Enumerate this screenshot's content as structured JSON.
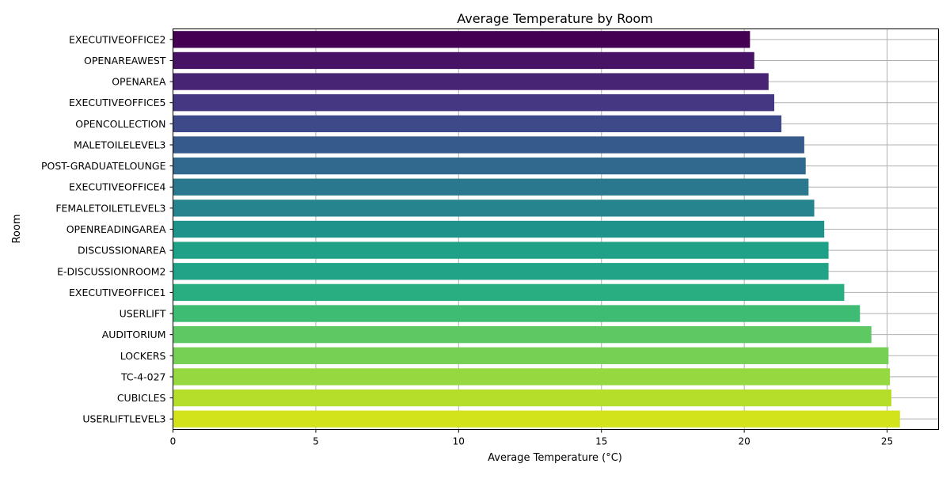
{
  "chart_data": {
    "type": "bar",
    "orientation": "horizontal",
    "title": "Average Temperature by Room",
    "xlabel": "Average Temperature (°C)",
    "ylabel": "Room",
    "xlim": [
      0,
      26.8
    ],
    "xticks": [
      0,
      5,
      10,
      15,
      20,
      25
    ],
    "grid": true,
    "colormap": "viridis",
    "categories": [
      "EXECUTIVEOFFICE2",
      "OPENAREAWEST",
      "OPENAREA",
      "EXECUTIVEOFFICE5",
      "OPENCOLLECTION",
      "MALETOILELEVEL3",
      "POST-GRADUATELOUNGE",
      "EXECUTIVEOFFICE4",
      "FEMALETOILETLEVEL3",
      "OPENREADINGAREA",
      "DISCUSSIONAREA",
      "E-DISCUSSIONROOM2",
      "EXECUTIVEOFFICE1",
      "USERLIFT",
      "AUDITORIUM",
      "LOCKERS",
      "TC-4-027",
      "CUBICLES",
      "USERLIFTLEVEL3"
    ],
    "values": [
      20.2,
      20.35,
      20.85,
      21.05,
      21.3,
      22.1,
      22.15,
      22.25,
      22.45,
      22.8,
      22.95,
      22.95,
      23.5,
      24.05,
      24.45,
      25.05,
      25.1,
      25.15,
      25.45
    ],
    "colors": [
      "#440154",
      "#471365",
      "#482475",
      "#453781",
      "#3e4989",
      "#375a8c",
      "#30688e",
      "#2a788e",
      "#25848e",
      "#20928c",
      "#1fa188",
      "#20a386",
      "#28ae80",
      "#3fbc73",
      "#5ec962",
      "#75d054",
      "#95d840",
      "#b5de2b",
      "#d2e21b"
    ]
  }
}
